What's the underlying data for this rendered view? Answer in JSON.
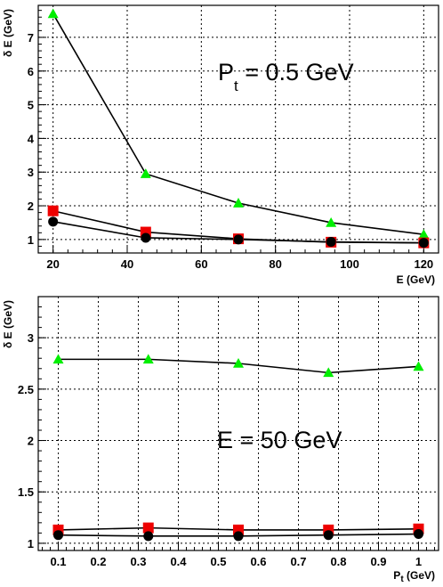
{
  "chart_data": [
    {
      "type": "line",
      "title": "",
      "xlabel": "E (GeV)",
      "ylabel": "δ E (GeV)",
      "annotation": {
        "main": "P",
        "sub": "t",
        "rest": " = 0.5 GeV"
      },
      "xlim": [
        16,
        124
      ],
      "ylim": [
        0.6,
        7.95
      ],
      "grid": true,
      "x": [
        20,
        45,
        70,
        95,
        120
      ],
      "xticks": [
        20,
        40,
        60,
        80,
        100,
        120
      ],
      "xtick_labels": [
        "20",
        "40",
        "60",
        "80",
        "100",
        "120"
      ],
      "yticks": [
        1,
        2,
        3,
        4,
        5,
        6,
        7
      ],
      "ytick_labels": [
        "1",
        "2",
        "3",
        "4",
        "5",
        "6",
        "7"
      ],
      "series": [
        {
          "marker": "triangle",
          "color": "#00ee00",
          "values": [
            7.7,
            2.95,
            2.08,
            1.5,
            1.15
          ]
        },
        {
          "marker": "square",
          "color": "#ee0000",
          "values": [
            1.85,
            1.22,
            1.02,
            0.92,
            0.9
          ]
        },
        {
          "marker": "circle",
          "color": "#000000",
          "values": [
            1.53,
            1.05,
            1.0,
            0.93,
            0.9
          ]
        }
      ]
    },
    {
      "type": "line",
      "title": "",
      "xlabel": "",
      "xlabel_main": "P",
      "xlabel_sub": "t",
      "xlabel_rest": " (GeV)",
      "ylabel": "δ E (GeV)",
      "annotation": {
        "main": "E = 50 GeV",
        "sub": "",
        "rest": ""
      },
      "xlim": [
        0.05,
        1.05
      ],
      "ylim": [
        0.93,
        3.4
      ],
      "grid": true,
      "x": [
        0.1,
        0.325,
        0.55,
        0.775,
        1.0
      ],
      "xticks": [
        0.1,
        0.2,
        0.3,
        0.4,
        0.5,
        0.6,
        0.7,
        0.8,
        0.9,
        1.0
      ],
      "xtick_labels": [
        "0.1",
        "0.2",
        "0.3",
        "0.4",
        "0.5",
        "0.6",
        "0.7",
        "0.8",
        "0.9",
        "1"
      ],
      "yticks": [
        1,
        1.5,
        2,
        2.5,
        3
      ],
      "ytick_labels": [
        "1",
        "1.5",
        "2",
        "2.5",
        "3"
      ],
      "series": [
        {
          "marker": "triangle",
          "color": "#00ee00",
          "values": [
            2.79,
            2.79,
            2.75,
            2.66,
            2.72
          ]
        },
        {
          "marker": "square",
          "color": "#ee0000",
          "values": [
            1.13,
            1.15,
            1.13,
            1.13,
            1.14
          ]
        },
        {
          "marker": "circle",
          "color": "#000000",
          "values": [
            1.08,
            1.07,
            1.07,
            1.08,
            1.09
          ]
        }
      ]
    }
  ]
}
